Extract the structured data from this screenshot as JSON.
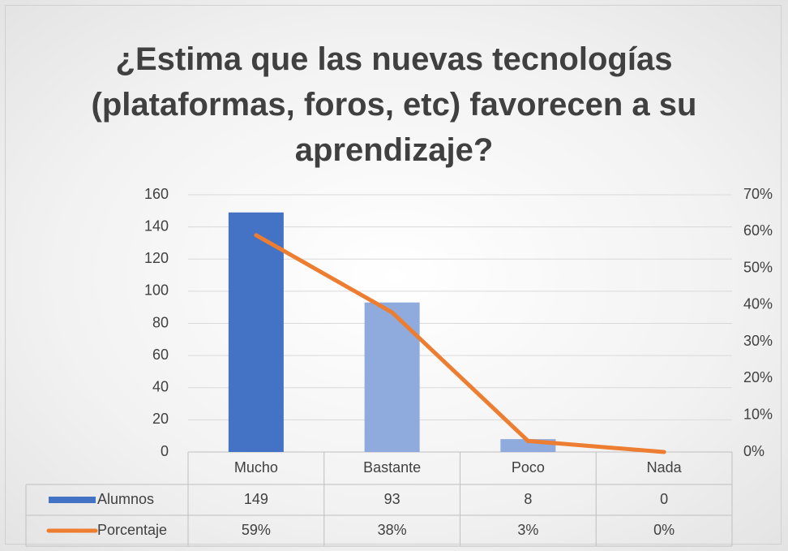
{
  "chart_data": {
    "type": "bar",
    "title": "¿Estima que las nuevas tecnologías (plataformas, foros, etc) favorecen a su aprendizaje?",
    "categories": [
      "Mucho",
      "Bastante",
      "Poco",
      "Nada"
    ],
    "series": [
      {
        "name": "Alumnos",
        "type": "bar",
        "color": "#4472c4",
        "colors": [
          "#4472c4",
          "#8faadc",
          "#8faadc",
          "#8faadc"
        ],
        "values": [
          149,
          93,
          8,
          0
        ]
      },
      {
        "name": "Porcentaje",
        "type": "line",
        "axis": "y2",
        "color": "#ed7d31",
        "values": [
          59,
          38,
          3,
          0
        ],
        "value_labels": [
          "59%",
          "38%",
          "3%",
          "0%"
        ]
      }
    ],
    "ylim": [
      0,
      160
    ],
    "yticks": [
      0,
      20,
      40,
      60,
      80,
      100,
      120,
      140,
      160
    ],
    "y2lim": [
      0,
      70
    ],
    "y2ticks": [
      {
        "value": 0,
        "label": "0%"
      },
      {
        "value": 10,
        "label": "10%"
      },
      {
        "value": 20,
        "label": "20%"
      },
      {
        "value": 30,
        "label": "30%"
      },
      {
        "value": 40,
        "label": "40%"
      },
      {
        "value": 50,
        "label": "50%"
      },
      {
        "value": 60,
        "label": "60%"
      },
      {
        "value": 70,
        "label": "70%"
      }
    ],
    "grid": true
  }
}
